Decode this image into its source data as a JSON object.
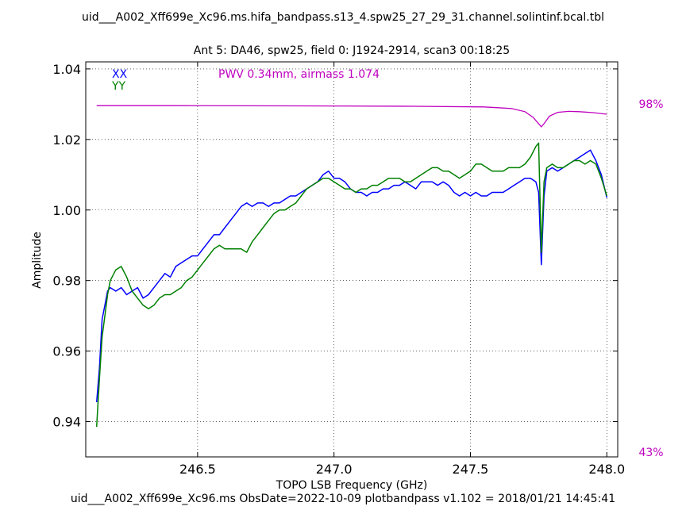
{
  "figure": {
    "title": "uid___A002_Xff699e_Xc96.ms.hifa_bandpass.s13_4.spw25_27_29_31.channel.solintinf.bcal.tbl",
    "subtitle": "Ant 5: DA46,  spw25,  field 0: J1924-2914,  scan3  00:18:25",
    "footer": "uid___A002_Xff699e_Xc96.ms  ObsDate=2022-10-09   plotbandpass v1.102 = 2018/01/21 14:45:41",
    "right_axis_top_label": "98%",
    "right_axis_bottom_label": "43%"
  },
  "chart_data": {
    "type": "line",
    "xlabel": "TOPO LSB Frequency (GHz)",
    "ylabel": "Amplitude",
    "xlim": [
      246.09,
      248.04
    ],
    "ylim": [
      0.93,
      1.042
    ],
    "xticks": [
      246.5,
      247.0,
      247.5,
      248.0
    ],
    "xtick_labels": [
      "246.5",
      "247.0",
      "247.5",
      "248.0"
    ],
    "yticks": [
      0.94,
      0.96,
      0.98,
      1.0,
      1.02,
      1.04
    ],
    "ytick_labels": [
      "0.94",
      "0.96",
      "0.98",
      "1.00",
      "1.02",
      "1.04"
    ],
    "grid": true,
    "legend_position": "top-left",
    "series": [
      {
        "name": "XX",
        "color": "#0000ff",
        "x": [
          246.13,
          246.14,
          246.15,
          246.16,
          246.17,
          246.18,
          246.2,
          246.22,
          246.24,
          246.26,
          246.28,
          246.3,
          246.32,
          246.34,
          246.36,
          246.38,
          246.4,
          246.42,
          246.44,
          246.46,
          246.48,
          246.5,
          246.52,
          246.54,
          246.56,
          246.58,
          246.6,
          246.62,
          246.64,
          246.66,
          246.68,
          246.7,
          246.72,
          246.74,
          246.76,
          246.78,
          246.8,
          246.82,
          246.84,
          246.86,
          246.88,
          246.9,
          246.92,
          246.94,
          246.96,
          246.98,
          247.0,
          247.02,
          247.04,
          247.06,
          247.08,
          247.1,
          247.12,
          247.14,
          247.16,
          247.18,
          247.2,
          247.22,
          247.24,
          247.26,
          247.28,
          247.3,
          247.32,
          247.34,
          247.36,
          247.38,
          247.4,
          247.42,
          247.44,
          247.46,
          247.48,
          247.5,
          247.52,
          247.54,
          247.56,
          247.58,
          247.6,
          247.62,
          247.64,
          247.66,
          247.68,
          247.7,
          247.72,
          247.74,
          247.75,
          247.76,
          247.77,
          247.78,
          247.8,
          247.82,
          247.84,
          247.86,
          247.88,
          247.9,
          247.92,
          247.94,
          247.96,
          247.98,
          248.0
        ],
        "values": [
          0.9455,
          0.955,
          0.969,
          0.973,
          0.977,
          0.978,
          0.977,
          0.978,
          0.976,
          0.977,
          0.978,
          0.975,
          0.976,
          0.978,
          0.98,
          0.982,
          0.981,
          0.984,
          0.985,
          0.986,
          0.987,
          0.987,
          0.989,
          0.991,
          0.993,
          0.993,
          0.995,
          0.997,
          0.999,
          1.001,
          1.002,
          1.001,
          1.002,
          1.002,
          1.001,
          1.002,
          1.002,
          1.003,
          1.004,
          1.004,
          1.005,
          1.006,
          1.007,
          1.008,
          1.01,
          1.011,
          1.009,
          1.009,
          1.008,
          1.006,
          1.005,
          1.005,
          1.004,
          1.005,
          1.005,
          1.006,
          1.006,
          1.007,
          1.007,
          1.008,
          1.007,
          1.006,
          1.008,
          1.008,
          1.008,
          1.007,
          1.008,
          1.007,
          1.005,
          1.004,
          1.005,
          1.004,
          1.005,
          1.004,
          1.004,
          1.005,
          1.005,
          1.005,
          1.006,
          1.007,
          1.008,
          1.009,
          1.009,
          1.008,
          1.005,
          0.9845,
          1.004,
          1.011,
          1.012,
          1.011,
          1.012,
          1.013,
          1.014,
          1.015,
          1.016,
          1.017,
          1.014,
          1.01,
          1.0035
        ]
      },
      {
        "name": "YY",
        "color": "#008000",
        "x": [
          246.13,
          246.14,
          246.15,
          246.16,
          246.17,
          246.18,
          246.2,
          246.22,
          246.24,
          246.26,
          246.28,
          246.3,
          246.32,
          246.34,
          246.36,
          246.38,
          246.4,
          246.42,
          246.44,
          246.46,
          246.48,
          246.5,
          246.52,
          246.54,
          246.56,
          246.58,
          246.6,
          246.62,
          246.64,
          246.66,
          246.68,
          246.7,
          246.72,
          246.74,
          246.76,
          246.78,
          246.8,
          246.82,
          246.84,
          246.86,
          246.88,
          246.9,
          246.92,
          246.94,
          246.96,
          246.98,
          247.0,
          247.02,
          247.04,
          247.06,
          247.08,
          247.1,
          247.12,
          247.14,
          247.16,
          247.18,
          247.2,
          247.22,
          247.24,
          247.26,
          247.28,
          247.3,
          247.32,
          247.34,
          247.36,
          247.38,
          247.4,
          247.42,
          247.44,
          247.46,
          247.48,
          247.5,
          247.52,
          247.54,
          247.56,
          247.58,
          247.6,
          247.62,
          247.64,
          247.66,
          247.68,
          247.7,
          247.72,
          247.74,
          247.75,
          247.76,
          247.77,
          247.78,
          247.8,
          247.82,
          247.84,
          247.86,
          247.88,
          247.9,
          247.92,
          247.94,
          247.96,
          247.98,
          248.0
        ],
        "values": [
          0.9385,
          0.952,
          0.964,
          0.97,
          0.976,
          0.98,
          0.983,
          0.984,
          0.981,
          0.977,
          0.975,
          0.973,
          0.972,
          0.973,
          0.975,
          0.976,
          0.976,
          0.977,
          0.978,
          0.98,
          0.981,
          0.983,
          0.985,
          0.987,
          0.989,
          0.99,
          0.989,
          0.989,
          0.989,
          0.989,
          0.988,
          0.991,
          0.993,
          0.995,
          0.997,
          0.999,
          1.0,
          1.0,
          1.001,
          1.002,
          1.004,
          1.006,
          1.007,
          1.008,
          1.009,
          1.009,
          1.008,
          1.007,
          1.006,
          1.006,
          1.005,
          1.006,
          1.006,
          1.007,
          1.007,
          1.008,
          1.009,
          1.009,
          1.009,
          1.008,
          1.008,
          1.009,
          1.01,
          1.011,
          1.012,
          1.012,
          1.011,
          1.011,
          1.01,
          1.009,
          1.01,
          1.011,
          1.013,
          1.013,
          1.012,
          1.011,
          1.011,
          1.011,
          1.012,
          1.012,
          1.012,
          1.013,
          1.015,
          1.018,
          1.019,
          0.988,
          1.008,
          1.012,
          1.013,
          1.012,
          1.012,
          1.013,
          1.014,
          1.014,
          1.013,
          1.014,
          1.013,
          1.009,
          1.004
        ]
      }
    ],
    "annotation": {
      "text": "PWV 0.34mm, airmass 1.074",
      "color": "#bf00bf"
    },
    "atmosphere_curve": {
      "color": "#bf00bf",
      "axis_range_percent": [
        43,
        98
      ],
      "x": [
        246.13,
        246.4,
        246.7,
        247.0,
        247.3,
        247.55,
        247.65,
        247.7,
        247.73,
        247.75,
        247.76,
        247.77,
        247.79,
        247.82,
        247.86,
        247.9,
        247.95,
        248.0
      ],
      "transmission_percent": [
        97.85,
        97.85,
        97.82,
        97.8,
        97.75,
        97.65,
        97.4,
        96.9,
        96.0,
        95.0,
        94.5,
        95.0,
        96.2,
        96.8,
        96.95,
        96.9,
        96.75,
        96.5
      ]
    }
  }
}
